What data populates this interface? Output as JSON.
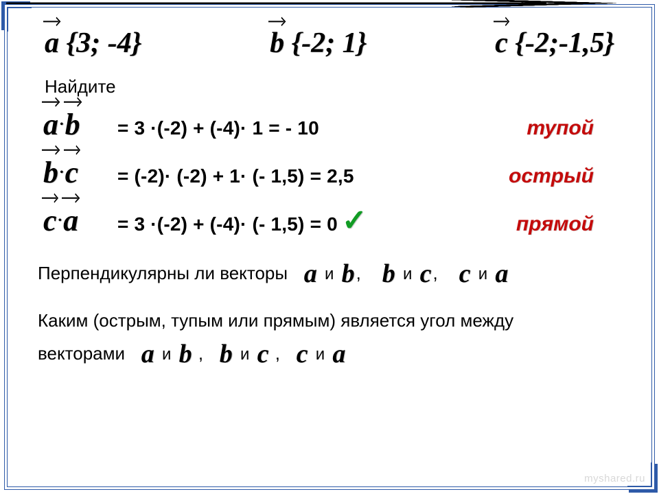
{
  "colors": {
    "border": "#2e5aa8",
    "red": "#c40b0b",
    "green_check": "#119c24",
    "watermark": "#d8d8d8"
  },
  "fonts": {
    "math_family": "Times New Roman",
    "text_family": "Arial",
    "vec_def_size_pt": 42,
    "lhs_size_pt": 44,
    "rhs_size_pt": 28,
    "question_size_pt": 26,
    "angle_word_size_pt": 30,
    "inline_vec_size_pt": 38
  },
  "vectors": {
    "a": {
      "letter": "a",
      "coords": "{3; -4}"
    },
    "b": {
      "letter": "b",
      "coords": "{-2; 1}"
    },
    "c": {
      "letter": "c",
      "coords": "{-2;-1,5}"
    }
  },
  "labels": {
    "find": "Найдите",
    "perp_q": "Перпендикулярны ли векторы",
    "angle_q1": "Каким (острым, тупым или прямым) является угол между",
    "angle_q2_prefix": "векторами",
    "and": "и",
    "comma": ",",
    "watermark": "myshared.ru"
  },
  "equations": [
    {
      "lhs": [
        "a",
        "b"
      ],
      "rhs": "= 3 ·(-2) + (-4)· 1 = - 10",
      "angle": "тупой",
      "check": false
    },
    {
      "lhs": [
        "b",
        "c"
      ],
      "rhs": "= (-2)· (-2) + 1· (- 1,5) = 2,5",
      "angle": "острый",
      "check": false
    },
    {
      "lhs": [
        "c",
        "a"
      ],
      "rhs": "= 3 ·(-2) + (-4)· (- 1,5) = 0",
      "angle": "прямой",
      "check": true
    }
  ],
  "pairs": [
    [
      "a",
      "b"
    ],
    [
      "b",
      "c"
    ],
    [
      "c",
      "a"
    ]
  ],
  "check_glyph": "✓"
}
